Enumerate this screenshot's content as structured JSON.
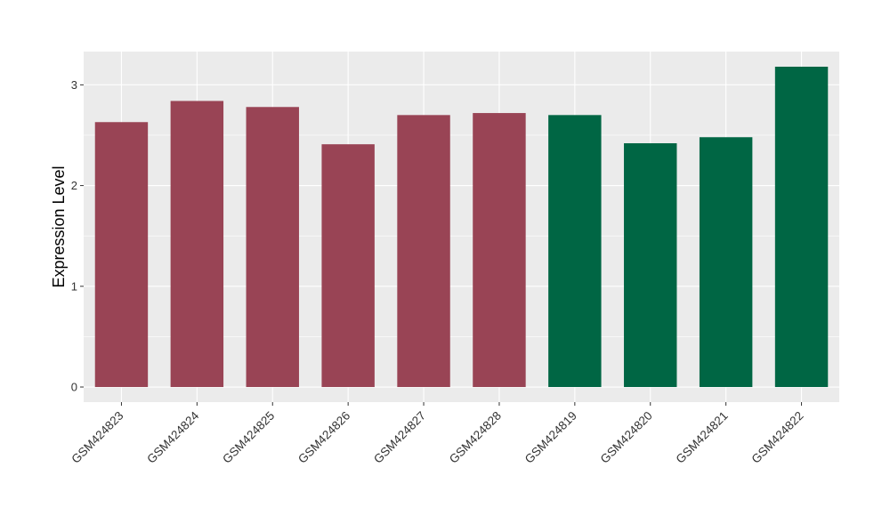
{
  "chart_data": {
    "type": "bar",
    "title": "",
    "xlabel": "",
    "ylabel": "Expression Level",
    "categories": [
      "GSM424823",
      "GSM424824",
      "GSM424825",
      "GSM424826",
      "GSM424827",
      "GSM424828",
      "GSM424819",
      "GSM424820",
      "GSM424821",
      "GSM424822"
    ],
    "values": [
      2.63,
      2.84,
      2.78,
      2.41,
      2.7,
      2.72,
      2.7,
      2.42,
      2.48,
      3.18
    ],
    "bar_colors": [
      "#994455",
      "#994455",
      "#994455",
      "#994455",
      "#994455",
      "#994455",
      "#006644",
      "#006644",
      "#006644",
      "#006644"
    ],
    "yticks": [
      0,
      1,
      2,
      3
    ],
    "ylim": [
      -0.15,
      3.33
    ],
    "grid": true,
    "legend": "none",
    "panel_background": "#ebebeb",
    "gridline_color": "#ffffff"
  }
}
